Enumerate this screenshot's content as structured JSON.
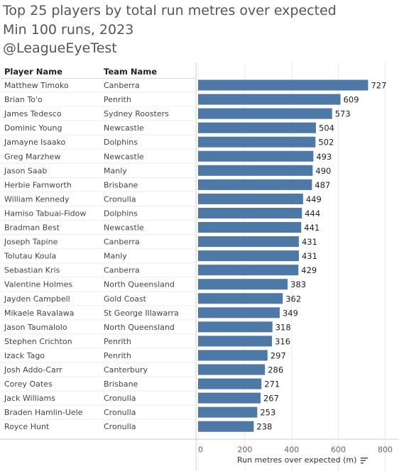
{
  "title": {
    "line1": "Top 25 players by total run metres over expected",
    "line2": "Min 100 runs, 2023",
    "line3": "@LeagueEyeTest"
  },
  "headers": {
    "player": "Player Name",
    "team": "Team Name"
  },
  "sort_icon": "sort-descending-icon",
  "chart_data": {
    "type": "bar",
    "orientation": "horizontal",
    "title": "Top 25 players by total run metres over expected",
    "subtitle": "Min 100 runs, 2023",
    "xlabel": "Run metres over expected (m)",
    "xlim": [
      0,
      800
    ],
    "xticks": [
      0,
      200,
      400,
      600,
      800
    ],
    "grid": true,
    "bar_color": "#4e79a7",
    "rows": [
      {
        "player": "Matthew Timoko",
        "team": "Canberra",
        "value": 727
      },
      {
        "player": "Brian To'o",
        "team": "Penrith",
        "value": 609
      },
      {
        "player": "James Tedesco",
        "team": "Sydney Roosters",
        "value": 573
      },
      {
        "player": "Dominic Young",
        "team": "Newcastle",
        "value": 504
      },
      {
        "player": "Jamayne Isaako",
        "team": "Dolphins",
        "value": 502
      },
      {
        "player": "Greg Marzhew",
        "team": "Newcastle",
        "value": 493
      },
      {
        "player": "Jason Saab",
        "team": "Manly",
        "value": 490
      },
      {
        "player": "Herbie Farnworth",
        "team": "Brisbane",
        "value": 487
      },
      {
        "player": "William Kennedy",
        "team": "Cronulla",
        "value": 449
      },
      {
        "player": "Hamiso Tabuai-Fidow",
        "team": "Dolphins",
        "value": 444
      },
      {
        "player": "Bradman Best",
        "team": "Newcastle",
        "value": 441
      },
      {
        "player": "Joseph Tapine",
        "team": "Canberra",
        "value": 431
      },
      {
        "player": "Tolutau Koula",
        "team": "Manly",
        "value": 431
      },
      {
        "player": "Sebastian Kris",
        "team": "Canberra",
        "value": 429
      },
      {
        "player": "Valentine Holmes",
        "team": "North Queensland",
        "value": 383
      },
      {
        "player": "Jayden Campbell",
        "team": "Gold Coast",
        "value": 362
      },
      {
        "player": "Mikaele Ravalawa",
        "team": "St George Illawarra",
        "value": 349
      },
      {
        "player": "Jason Taumalolo",
        "team": "North Queensland",
        "value": 318
      },
      {
        "player": "Stephen Crichton",
        "team": "Penrith",
        "value": 316
      },
      {
        "player": "Izack Tago",
        "team": "Penrith",
        "value": 297
      },
      {
        "player": "Josh Addo-Carr",
        "team": "Canterbury",
        "value": 286
      },
      {
        "player": "Corey Oates",
        "team": "Brisbane",
        "value": 271
      },
      {
        "player": "Jack Williams",
        "team": "Cronulla",
        "value": 267
      },
      {
        "player": "Braden Hamlin-Uele",
        "team": "Cronulla",
        "value": 253
      },
      {
        "player": "Royce Hunt",
        "team": "Cronulla",
        "value": 238
      }
    ]
  }
}
